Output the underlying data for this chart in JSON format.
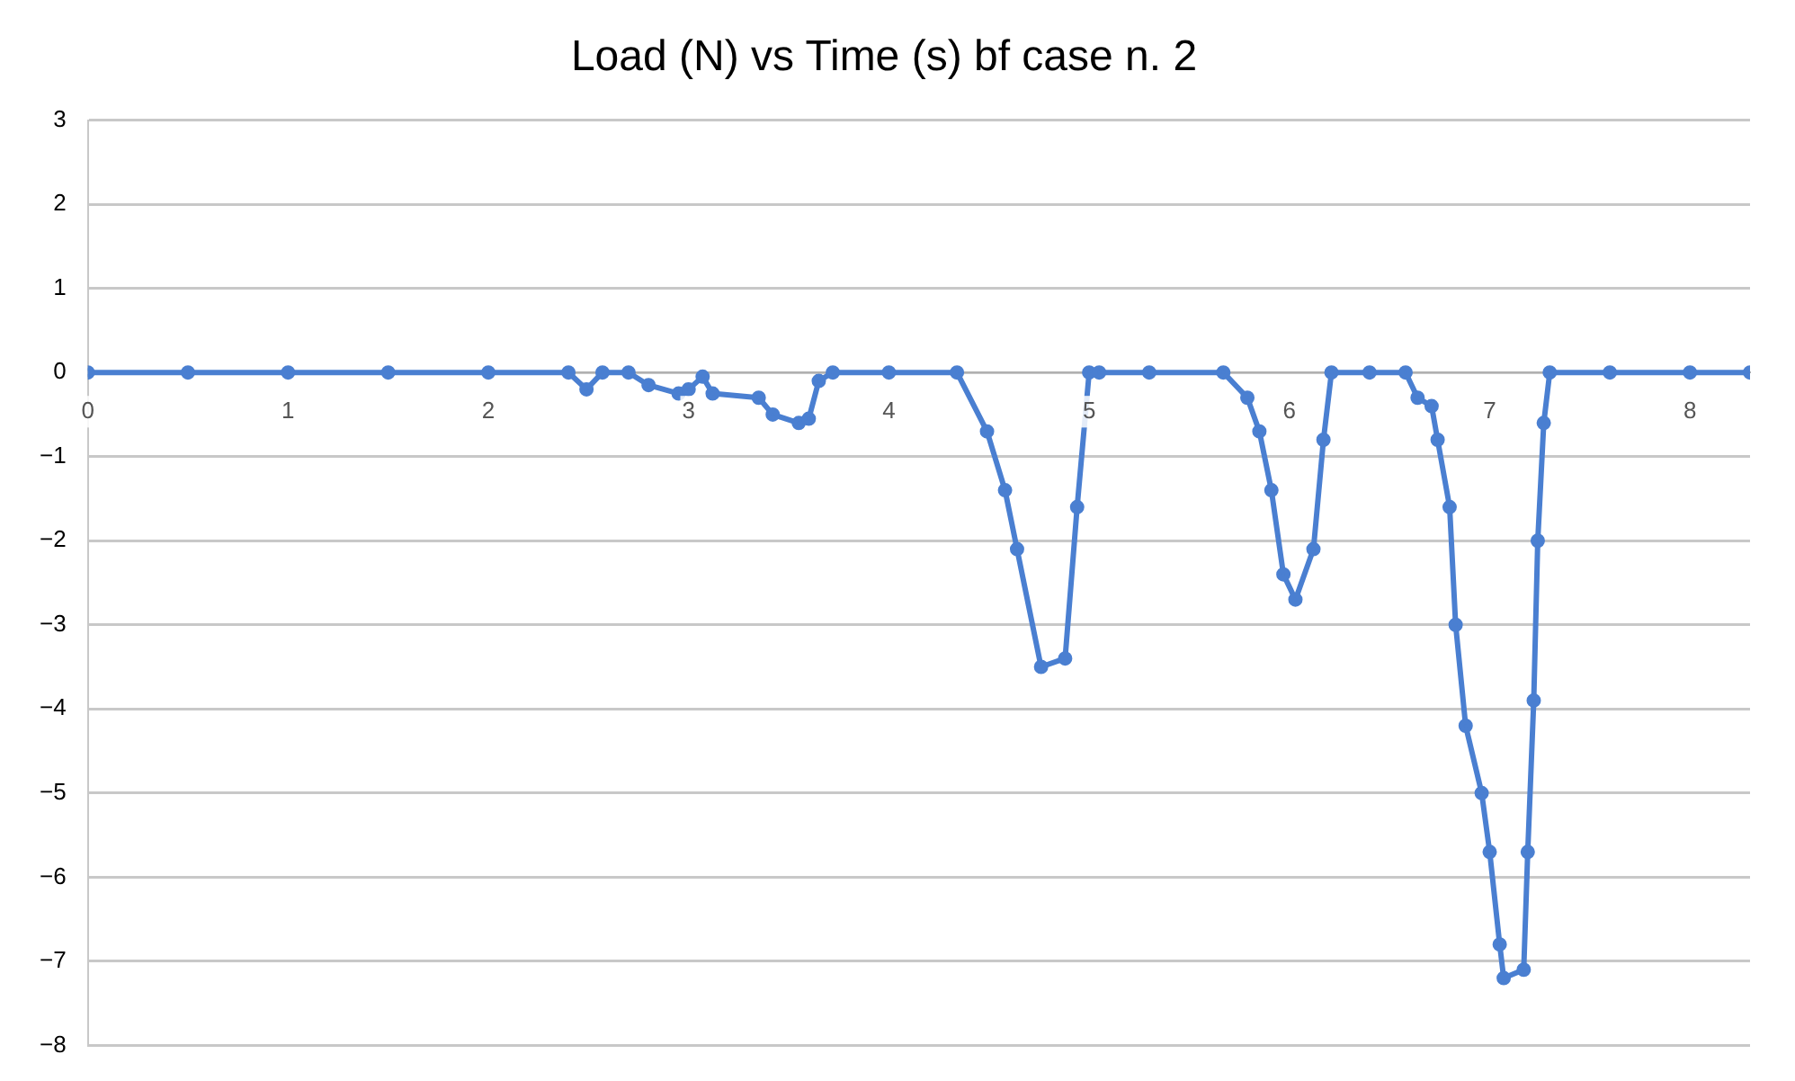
{
  "chart_data": {
    "type": "line",
    "title": "Load (N) vs Time (s) bf case n. 2",
    "xlim": [
      0,
      8.3
    ],
    "xticks": [
      0,
      1,
      2,
      3,
      4,
      5,
      6,
      7,
      8
    ],
    "ylim": [
      -8,
      3
    ],
    "yticks": [
      -8,
      -7,
      -6,
      -5,
      -4,
      -3,
      -2,
      -1,
      0,
      1,
      2,
      3
    ],
    "grid": "y",
    "legend": false,
    "marker": "circle",
    "line_style": "solid",
    "series": [
      {
        "color": "#4a7fd1",
        "x": [
          0,
          0.5,
          1,
          1.5,
          2,
          2.4,
          2.49,
          2.57,
          2.7,
          2.8,
          2.95,
          3.0,
          3.07,
          3.12,
          3.35,
          3.42,
          3.55,
          3.6,
          3.65,
          3.72,
          4.0,
          4.34,
          4.49,
          4.58,
          4.64,
          4.76,
          4.88,
          4.94,
          5.0,
          5.05,
          5.3,
          5.67,
          5.79,
          5.85,
          5.91,
          5.97,
          6.03,
          6.12,
          6.17,
          6.21,
          6.4,
          6.58,
          6.64,
          6.71,
          6.74,
          6.8,
          6.83,
          6.88,
          6.96,
          7.0,
          7.05,
          7.07,
          7.17,
          7.19,
          7.22,
          7.24,
          7.27,
          7.3,
          7.6,
          8.0,
          8.3
        ],
        "values": [
          0,
          0,
          0,
          0,
          0,
          0,
          -0.2,
          0,
          0,
          -0.15,
          -0.25,
          -0.2,
          -0.05,
          -0.25,
          -0.3,
          -0.5,
          -0.6,
          -0.55,
          -0.1,
          0,
          0,
          0,
          -0.7,
          -1.4,
          -2.1,
          -3.5,
          -3.4,
          -1.6,
          0,
          0,
          0,
          0,
          -0.3,
          -0.7,
          -1.4,
          -2.4,
          -2.7,
          -2.1,
          -0.8,
          0,
          0,
          0,
          -0.3,
          -0.4,
          -0.8,
          -1.6,
          -3,
          -4.2,
          -5,
          -5.7,
          -6.8,
          -7.2,
          -7.1,
          -5.7,
          -3.9,
          -2,
          -0.6,
          0,
          0,
          0,
          0
        ]
      }
    ]
  }
}
